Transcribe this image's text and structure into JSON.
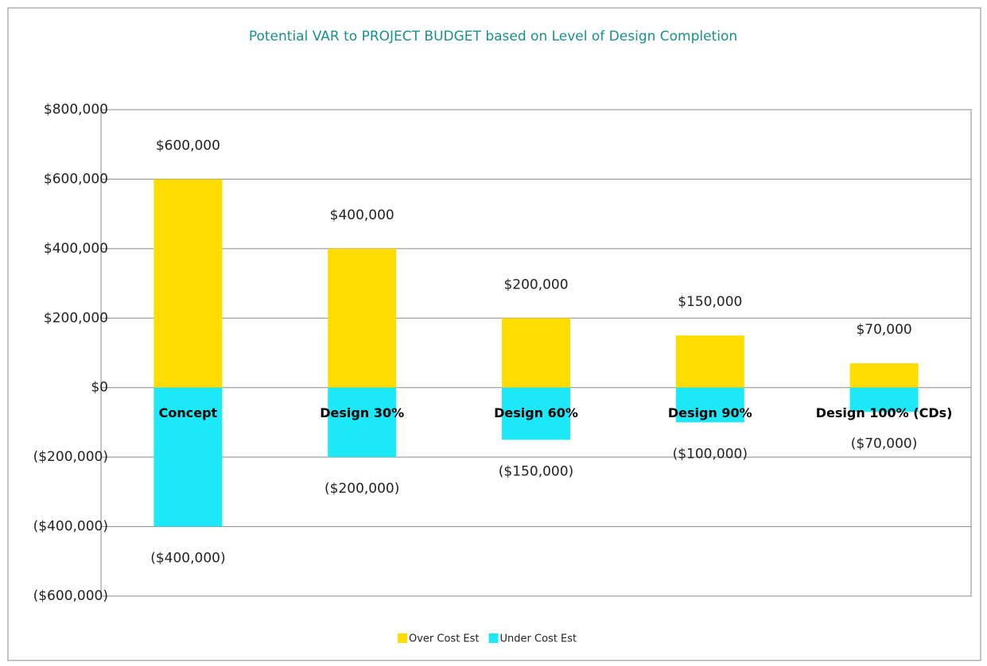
{
  "chart_data": {
    "type": "bar",
    "title": "Potential VAR to PROJECT BUDGET based on Level of Design Completion",
    "categories": [
      "Concept",
      "Design 30%",
      "Design 60%",
      "Design 90%",
      "Design 100% (CDs)"
    ],
    "series": [
      {
        "name": "Over Cost Est",
        "color": "#FFDD00",
        "values": [
          600000,
          400000,
          200000,
          150000,
          70000
        ],
        "value_labels": [
          "$600,000",
          "$400,000",
          "$200,000",
          "$150,000",
          "$70,000"
        ]
      },
      {
        "name": "Under Cost Est",
        "color": "#1CE8F8",
        "values": [
          -400000,
          -200000,
          -150000,
          -100000,
          -70000
        ],
        "value_labels": [
          "($400,000)",
          "($200,000)",
          "($150,000)",
          "($100,000)",
          "($70,000)"
        ]
      }
    ],
    "ylim": [
      -600000,
      800000
    ],
    "yticks": [
      {
        "value": -600000,
        "label": "($600,000)"
      },
      {
        "value": -400000,
        "label": "($400,000)"
      },
      {
        "value": -200000,
        "label": "($200,000)"
      },
      {
        "value": 0,
        "label": "$0"
      },
      {
        "value": 200000,
        "label": "$200,000"
      },
      {
        "value": 400000,
        "label": "$400,000"
      },
      {
        "value": 600000,
        "label": "$600,000"
      },
      {
        "value": 800000,
        "label": "$800,000"
      }
    ],
    "grid": true,
    "legend": "bottom"
  }
}
